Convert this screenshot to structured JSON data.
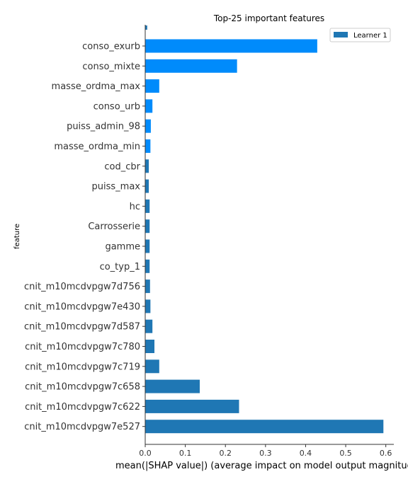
{
  "chart_data": {
    "type": "bar",
    "orientation": "horizontal",
    "title": "Top-25 important features",
    "xlabel": "mean(|SHAP value|) (average impact on model output magnitude)",
    "ylabel": "feature",
    "xlim": [
      0,
      0.62
    ],
    "xticks": [
      "0.0",
      "0.1",
      "0.2",
      "0.3",
      "0.4",
      "0.5",
      "0.6"
    ],
    "grid": false,
    "legend": {
      "position": "top-right",
      "entries": [
        "Learner 1"
      ]
    },
    "colors": {
      "series": "#1f77b4",
      "highlight": "#008bfb"
    },
    "top_partial_bar_value": 0.005,
    "categories": [
      "conso_exurb",
      "conso_mixte",
      "masse_ordma_max",
      "conso_urb",
      "puiss_admin_98",
      "masse_ordma_min",
      "cod_cbr",
      "puiss_max",
      "hc",
      "Carrosserie",
      "gamme",
      "co_typ_1",
      "cnit_m10mcdvpgw7d756",
      "cnit_m10mcdvpgw7e430",
      "cnit_m10mcdvpgw7d587",
      "cnit_m10mcdvpgw7c780",
      "cnit_m10mcdvpgw7c719",
      "cnit_m10mcdvpgw7c658",
      "cnit_m10mcdvpgw7c622",
      "cnit_m10mcdvpgw7e527"
    ],
    "values": [
      0.429,
      0.229,
      0.035,
      0.018,
      0.014,
      0.013,
      0.009,
      0.009,
      0.011,
      0.011,
      0.011,
      0.011,
      0.012,
      0.013,
      0.018,
      0.023,
      0.035,
      0.136,
      0.234,
      0.594
    ],
    "highlighted": [
      true,
      true,
      true,
      true,
      true,
      true,
      false,
      false,
      false,
      false,
      false,
      false,
      false,
      false,
      false,
      false,
      false,
      false,
      false,
      false
    ]
  }
}
